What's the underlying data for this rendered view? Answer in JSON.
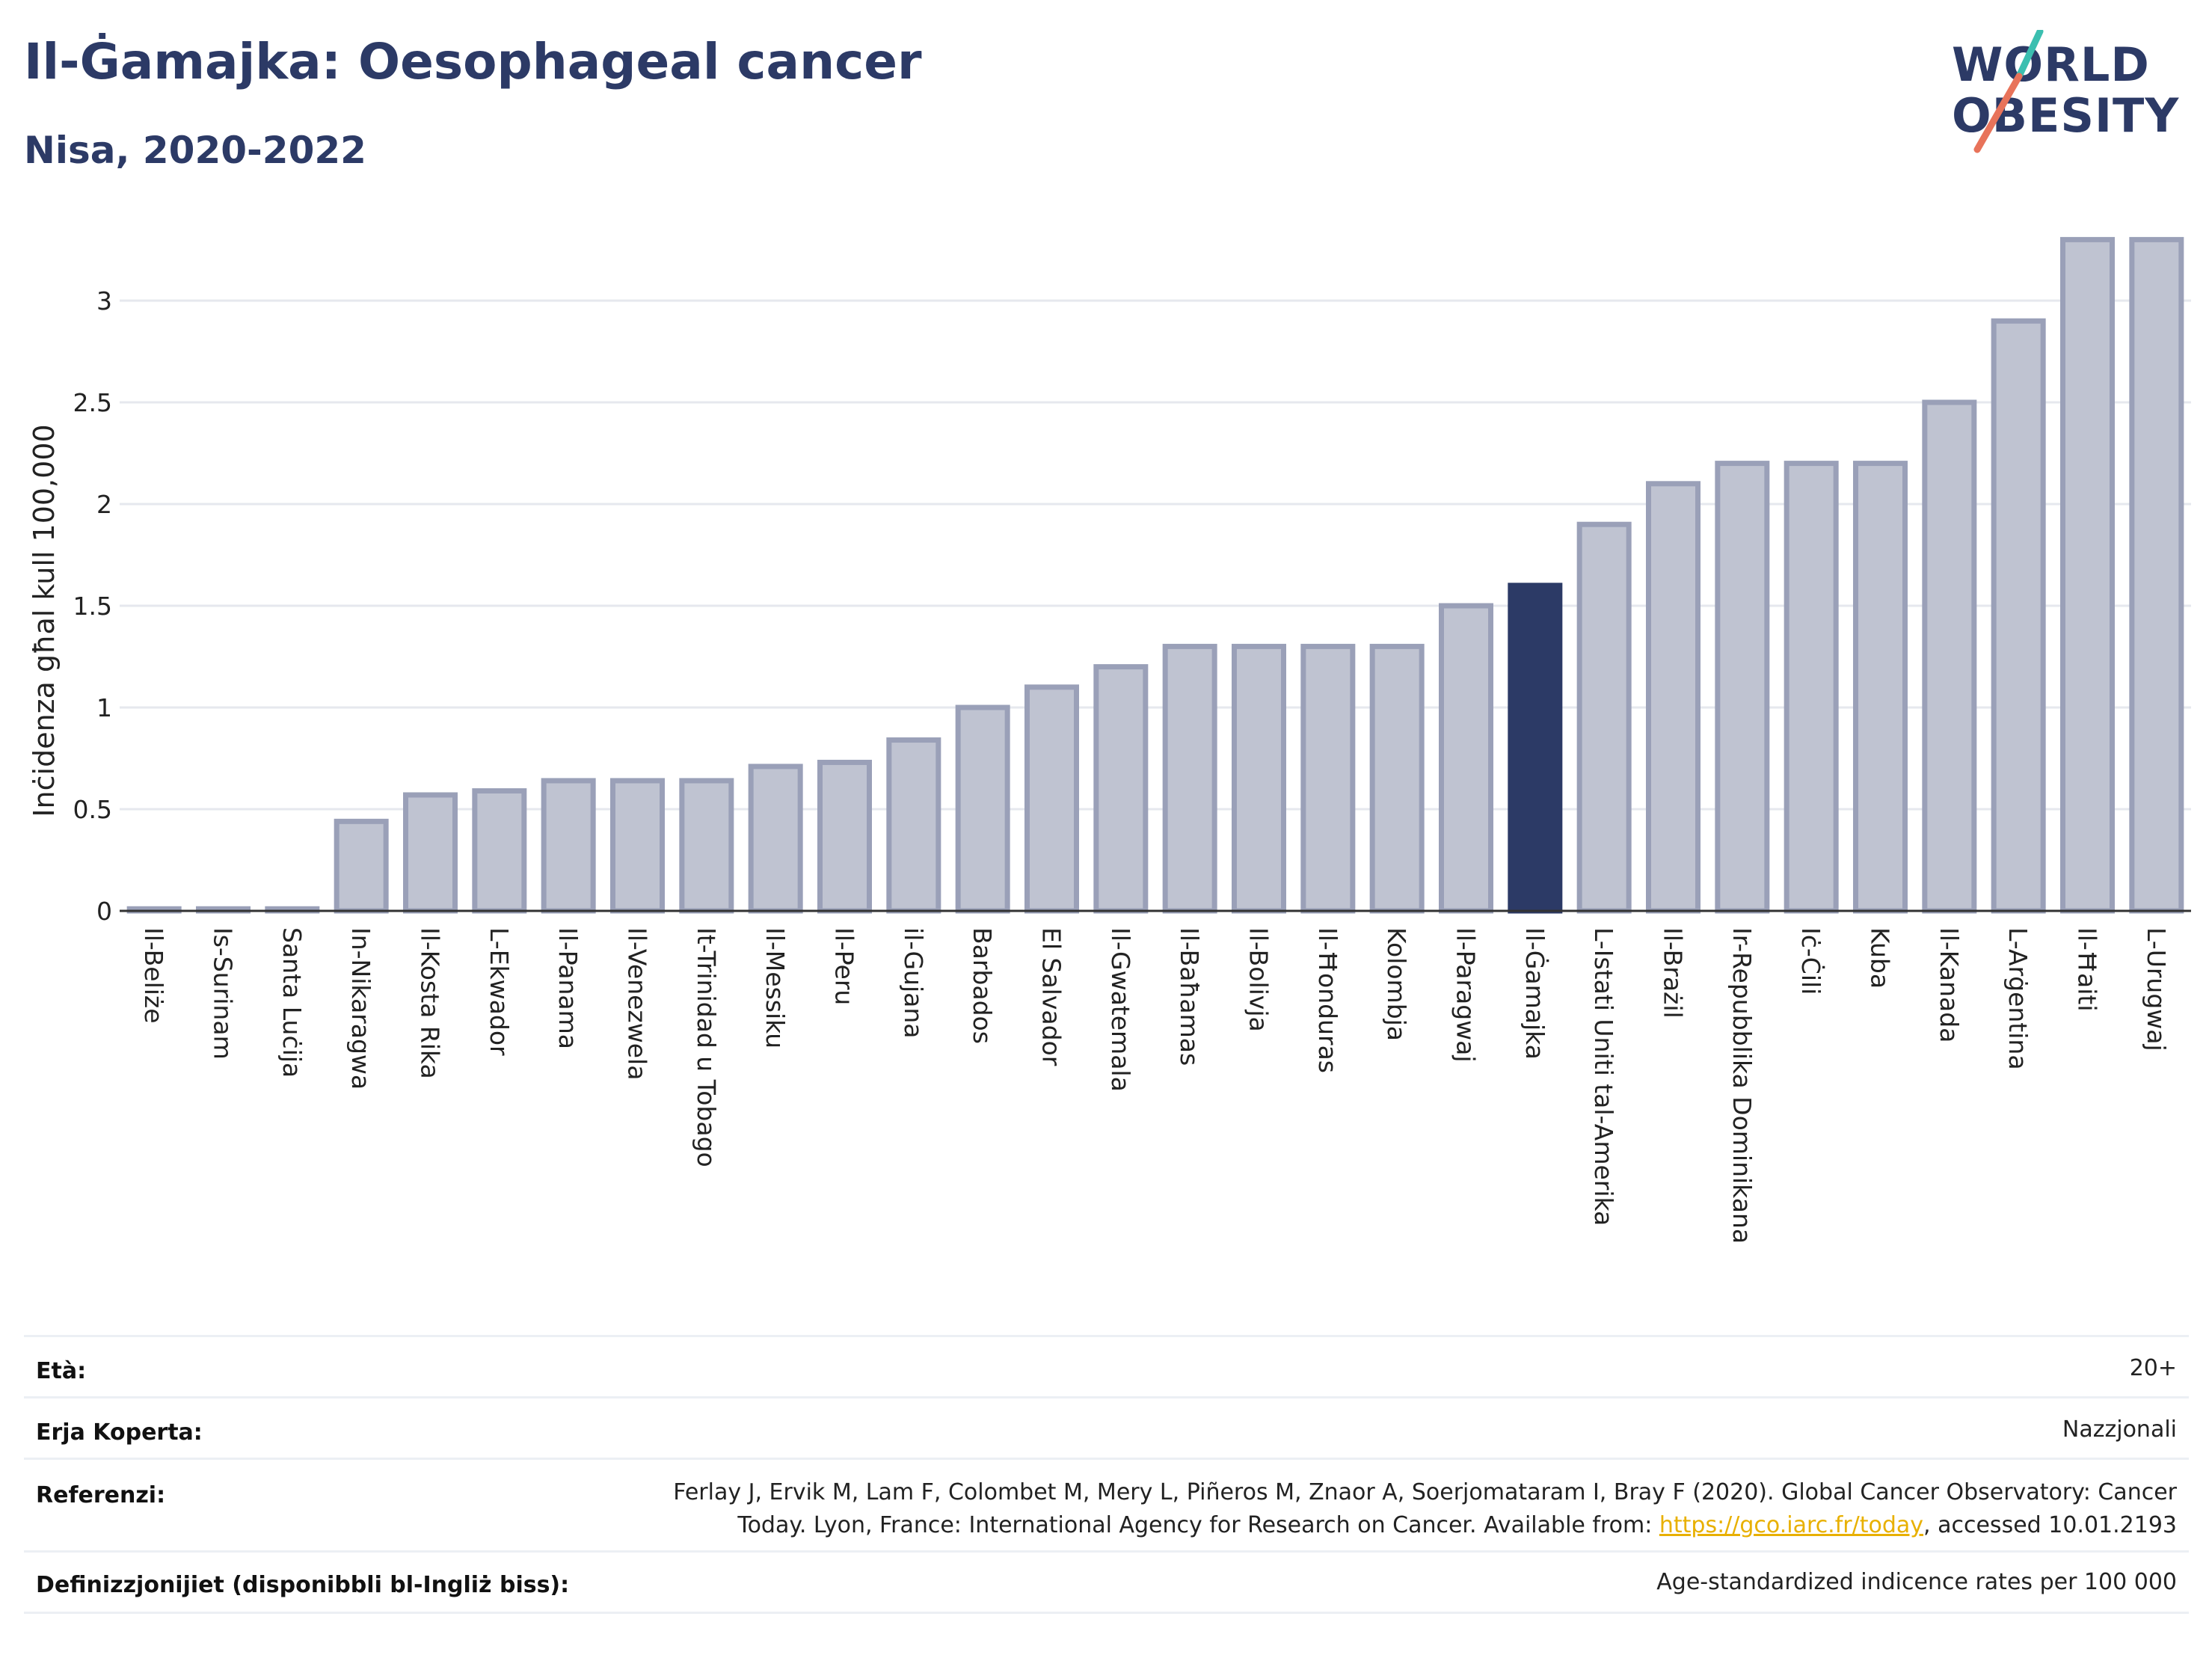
{
  "header": {
    "title": "Il-Ġamajka: Oesophageal cancer",
    "subtitle": "Nisa, 2020-2022"
  },
  "logo": {
    "line1": "WORLD",
    "line2": "OBESITY",
    "slash_colors": [
      "#3bbfb0",
      "#e8735a"
    ]
  },
  "colors": {
    "bar": "#bfc3d1",
    "bar_stroke": "#9aa0b8",
    "highlight": "#2c3a66",
    "grid": "#e6e8ee",
    "axis": "#333333"
  },
  "chart_data": {
    "type": "bar",
    "ylabel": "Inċidenza għal kull 100,000",
    "ylim": [
      0,
      3.3
    ],
    "yticks": [
      0,
      0.5,
      1,
      1.5,
      2,
      2.5,
      3
    ],
    "ytick_labels": [
      "0",
      "0.5",
      "1",
      "1.5",
      "2",
      "2.5",
      "3"
    ],
    "grid": true,
    "highlight_category": "Il-Ġamajka",
    "categories": [
      "Il-Beliże",
      "Is-Surinam",
      "Santa Luċija",
      "In-Nikaragwa",
      "Il-Kosta Rika",
      "L-Ekwador",
      "Il-Panama",
      "Il-Venezwela",
      "It-Trinidad u Tobago",
      "Il-Messiku",
      "Il-Peru",
      "il-Gujana",
      "Barbados",
      "El Salvador",
      "Il-Gwatemala",
      "Il-Baħamas",
      "Il-Bolivja",
      "Il-Ħonduras",
      "Kolombja",
      "Il-Paragwaj",
      "Il-Ġamajka",
      "L-Istati Uniti tal-Amerika",
      "Il-Brażil",
      "Ir-Repubblika Dominikana",
      "Iċ-Ċili",
      "Kuba",
      "Il-Kanada",
      "L-Arġentina",
      "Il-Ħaiti",
      "L-Urugwaj"
    ],
    "values": [
      0.01,
      0.01,
      0.01,
      0.44,
      0.57,
      0.59,
      0.64,
      0.64,
      0.64,
      0.71,
      0.73,
      0.84,
      1.0,
      1.1,
      1.2,
      1.3,
      1.3,
      1.3,
      1.3,
      1.5,
      1.6,
      1.9,
      2.1,
      2.2,
      2.2,
      2.2,
      2.5,
      2.9,
      3.3,
      3.3
    ]
  },
  "meta": {
    "age_label": "Età:",
    "age_value": "20+",
    "coverage_label": "Erja Koperta:",
    "coverage_value": "Nazzjonali",
    "refs_label": "Referenzi:",
    "refs_line1": "Ferlay J, Ervik M, Lam F, Colombet M, Mery L, Piñeros M, Znaor A, Soerjomataram I, Bray F (2020). Global Cancer Observatory: Cancer",
    "refs_line2_pre": "Today. Lyon, France: International Agency for Research on Cancer. Available from: ",
    "refs_link": "https://gco.iarc.fr/today",
    "refs_line2_post": ", accessed 10.01.2193",
    "defs_label": "Definizzjonijiet (disponibbli bl-Ingliż biss):",
    "defs_value": "Age-standardized indicence rates per 100 000"
  }
}
